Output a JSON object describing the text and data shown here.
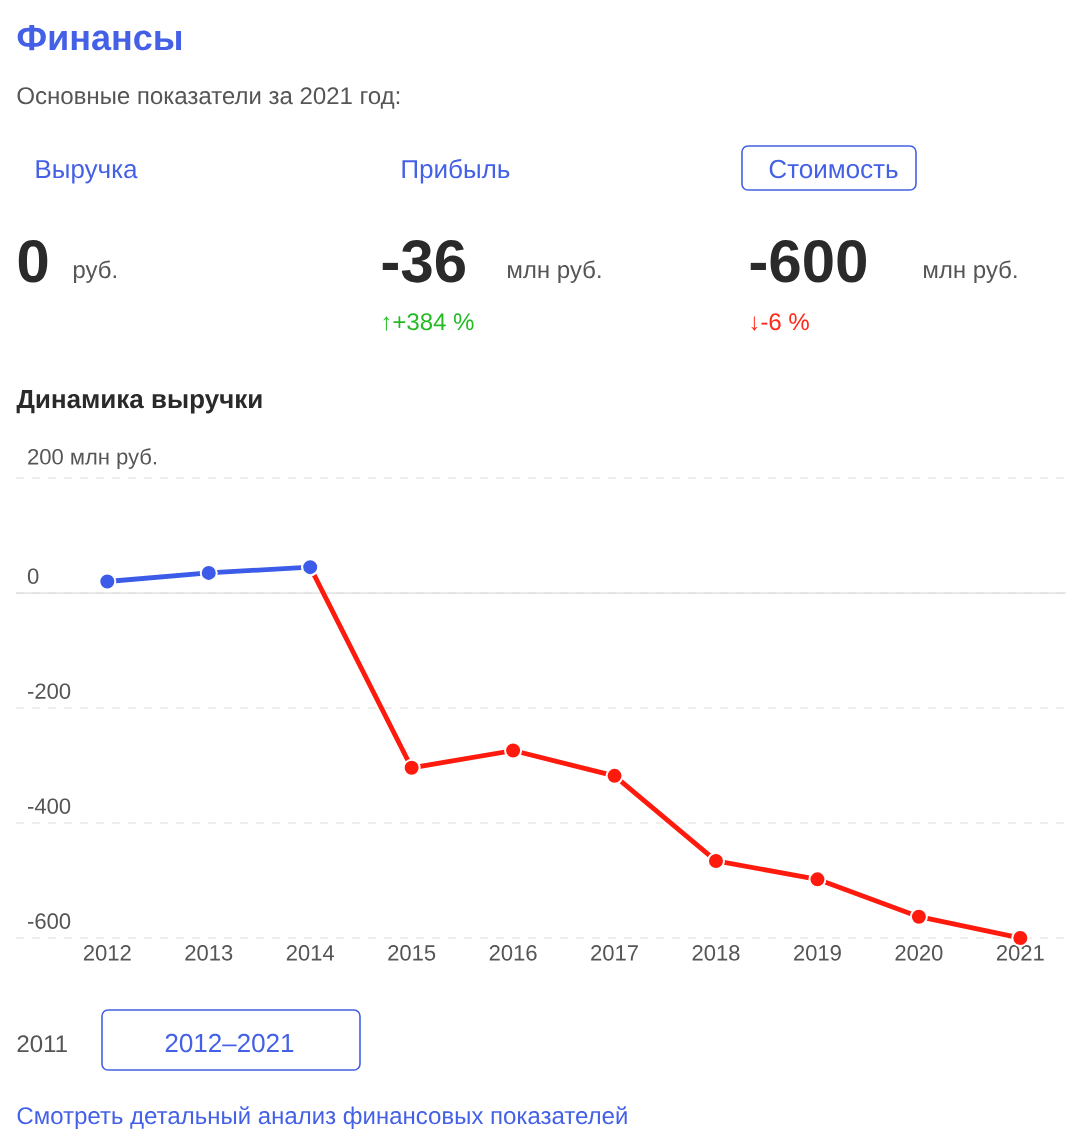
{
  "chart_data": [
    {
      "type": "other",
      "title": "Финансы",
      "subtitle": "Основные показатели за 2021 год:",
      "annotations": [
        "Выручка",
        "0",
        "руб.",
        "Прибыль",
        "-36",
        "млн руб.",
        "↑+384 %",
        "Стоимость",
        "-600",
        "млн руб.",
        "↓-6 %"
      ]
    },
    {
      "type": "line",
      "title": "Динамика выручки",
      "categories": [
        "2012",
        "2013",
        "2014",
        "2015",
        "2016",
        "2017",
        "2018",
        "2019",
        "2020",
        "2021"
      ],
      "series": [
        {
          "color": "#3b5be8",
          "values": [
            20,
            35,
            45,
            null,
            null,
            null,
            null,
            null,
            null,
            null
          ]
        },
        {
          "color": "#ff1a0e",
          "values": [
            null,
            null,
            45,
            -304,
            -274,
            -318,
            -466,
            -498,
            -563,
            -600
          ]
        }
      ],
      "ylim": [
        -600,
        200
      ],
      "yticks": [
        {
          "value": 200,
          "label": "200 млн руб."
        },
        0,
        -200,
        -400,
        -600
      ],
      "grid": "y",
      "marker": "circle",
      "line_style": "solid",
      "annotations": [
        "2011",
        "2012–2021",
        "Смотреть детальный анализ финансовых показателей"
      ]
    }
  ]
}
